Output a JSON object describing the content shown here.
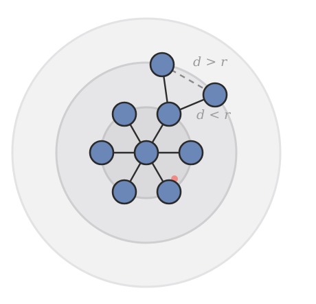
{
  "labels": {
    "far": "d > r",
    "near": "d < r"
  },
  "colors": {
    "node_fill": "#6a87b8",
    "node_stroke": "#2a2a2a",
    "marker": "#f08a84",
    "label": "#9b9b9b",
    "outer_ring": "#f2f2f3",
    "middle_ring": "#e6e6e8",
    "inner_ring": "#dadadc"
  },
  "graph": {
    "nodes": [
      "center",
      "upper-left",
      "upper-right",
      "left",
      "right",
      "lower-left",
      "lower-right",
      "top-far",
      "right-far"
    ],
    "edges": [
      {
        "from": "center",
        "to": "upper-left",
        "style": "solid"
      },
      {
        "from": "center",
        "to": "upper-right",
        "style": "solid"
      },
      {
        "from": "center",
        "to": "left",
        "style": "solid"
      },
      {
        "from": "center",
        "to": "right",
        "style": "solid"
      },
      {
        "from": "center",
        "to": "lower-left",
        "style": "solid"
      },
      {
        "from": "center",
        "to": "lower-right",
        "style": "solid"
      },
      {
        "from": "upper-right",
        "to": "top-far",
        "style": "solid"
      },
      {
        "from": "upper-right",
        "to": "right-far",
        "style": "solid"
      },
      {
        "from": "top-far",
        "to": "right-far",
        "style": "dashed"
      }
    ]
  }
}
